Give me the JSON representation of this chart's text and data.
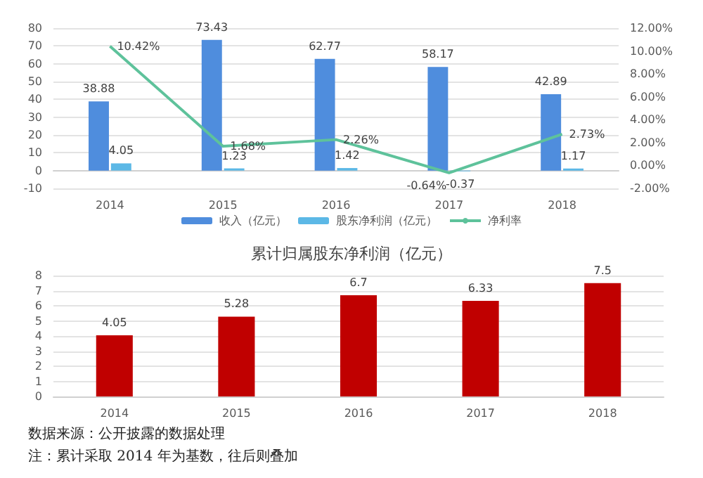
{
  "chart_data": [
    {
      "type": "bar",
      "categories": [
        "2014",
        "2015",
        "2016",
        "2017",
        "2018"
      ],
      "series": [
        {
          "name": "收入（亿元）",
          "color": "#4f8ddd",
          "values": [
            38.88,
            73.43,
            62.77,
            58.17,
            42.89
          ]
        },
        {
          "name": "股东净利润（亿元）",
          "color": "#5cb8e6",
          "values": [
            4.05,
            1.23,
            1.42,
            -0.37,
            1.17
          ]
        },
        {
          "name": "净利率",
          "type": "line",
          "axis": "y2",
          "color": "#5ec29b",
          "values": [
            10.42,
            1.68,
            2.26,
            -0.64,
            2.73
          ],
          "value_labels": [
            "10.42%",
            "1.68%",
            "2.26%",
            "-0.64%",
            "2.73%"
          ]
        }
      ],
      "ylim": [
        -10,
        80
      ],
      "yticks": [
        -10,
        0,
        10,
        20,
        30,
        40,
        50,
        60,
        70,
        80
      ],
      "y2lim": [
        -2,
        12
      ],
      "y2ticks": [
        {
          "value": -2,
          "label": "-2.00%"
        },
        {
          "value": 0,
          "label": "0.00%"
        },
        {
          "value": 2,
          "label": "2.00%"
        },
        {
          "value": 4,
          "label": "4.00%"
        },
        {
          "value": 6,
          "label": "6.00%"
        },
        {
          "value": 8,
          "label": "8.00%"
        },
        {
          "value": 10,
          "label": "10.00%"
        },
        {
          "value": 12,
          "label": "12.00%"
        }
      ],
      "data_labels": true,
      "grid": "y",
      "legend": "bottom",
      "marker": "none"
    },
    {
      "type": "bar",
      "title": "累计归属股东净利润（亿元）",
      "categories": [
        "2014",
        "2015",
        "2016",
        "2017",
        "2018"
      ],
      "values": [
        4.05,
        5.28,
        6.7,
        6.33,
        7.5
      ],
      "color": "#c00000",
      "ylim": [
        0,
        8
      ],
      "yticks": [
        0,
        1,
        2,
        3,
        4,
        5,
        6,
        7,
        8
      ],
      "data_labels": true,
      "grid": "y",
      "annotations": [
        "数据来源：公开披露的数据处理",
        "注：累计采取 2014 年为基数，往后则叠加"
      ]
    }
  ]
}
